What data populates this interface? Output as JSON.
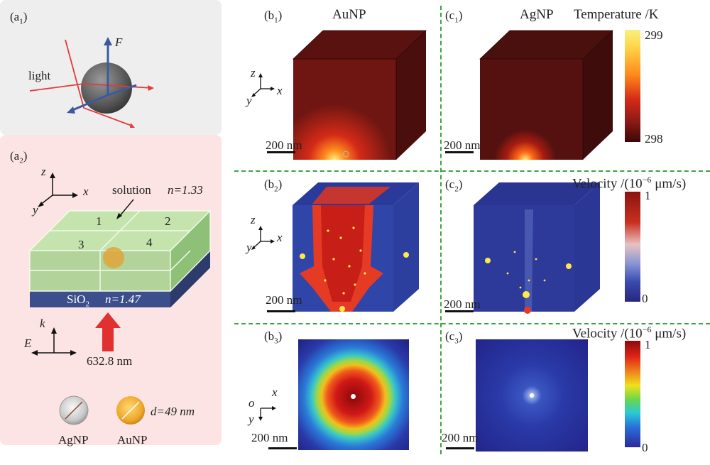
{
  "panels": {
    "a1": {
      "label": "(a",
      "sub": "1",
      "label_end": ")",
      "force": "F",
      "light": "light"
    },
    "a2": {
      "label": "(a",
      "sub": "2",
      "label_end": ")",
      "axis_z": "z",
      "axis_x": "x",
      "axis_y": "y",
      "solution": "solution",
      "n_solution": "n=1.33",
      "regions": [
        "1",
        "2",
        "3",
        "4"
      ],
      "substrate": "SiO",
      "substrate_sub": "2",
      "n_substrate": "n=1.47",
      "k": "k",
      "E": "E",
      "wavelength": "632.8 nm",
      "diameter": "d=49 nm",
      "agnp": "AgNP",
      "aunp": "AuNP"
    },
    "b1": {
      "label": "(b",
      "sub": "1",
      "label_end": ")",
      "title": "AuNP",
      "scale": "200 nm"
    },
    "c1": {
      "label": "(c",
      "sub": "1",
      "label_end": ")",
      "title": "AgNP",
      "scale": "200 nm"
    },
    "b2": {
      "label": "(b",
      "sub": "2",
      "label_end": ")",
      "scale": "200 nm"
    },
    "c2": {
      "label": "(c",
      "sub": "2",
      "label_end": ")",
      "scale": "200 nm"
    },
    "b3": {
      "label": "(b",
      "sub": "3",
      "label_end": ")",
      "scale": "200 nm",
      "axis_o": "o",
      "axis_x": "x",
      "axis_y": "y"
    },
    "c3": {
      "label": "(c",
      "sub": "3",
      "label_end": ")",
      "scale": "200 nm"
    }
  },
  "axes3d": {
    "z": "z",
    "x": "x",
    "y": "y"
  },
  "colorbars": {
    "temperature": {
      "title": "Temperature /K",
      "max": "299",
      "min": "298"
    },
    "velocity1": {
      "title": "Velocity /(10",
      "exp": "−6",
      "unit": " μm/s)",
      "max": "1",
      "min": "0"
    },
    "velocity2": {
      "title": "Velocity /(10",
      "exp": "−6",
      "unit": " μm/s)",
      "max": "1",
      "min": "0"
    }
  },
  "colors": {
    "separator": "#3aa540",
    "panel_a1_bg": "#efeeee",
    "panel_a2_bg": "#fde4e4"
  }
}
